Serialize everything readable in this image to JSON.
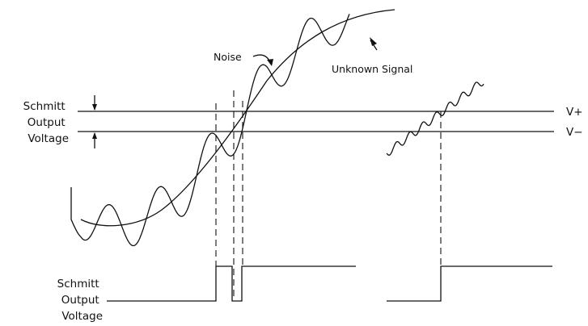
{
  "labels": {
    "threshold_label": [
      "Schmitt",
      "Output",
      "Voltage"
    ],
    "output_label": [
      "Schmitt",
      "Output",
      "Voltage"
    ],
    "v_plus": "V+",
    "v_minus": "V−",
    "noise": "Noise",
    "unknown_signal": "Unknown Signal"
  }
}
